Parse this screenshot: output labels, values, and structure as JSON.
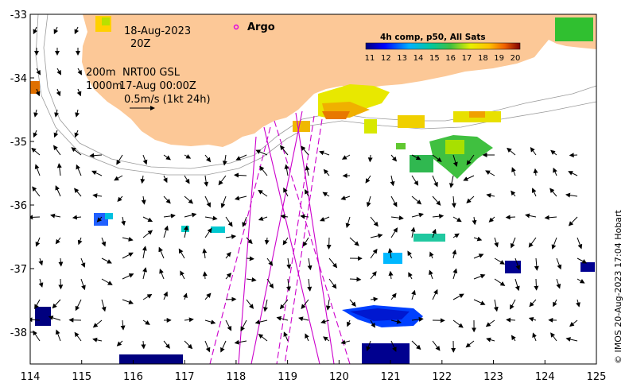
{
  "map": {
    "date_line": "18-Aug-2023",
    "time_line": "20Z",
    "depth_line_1_depth": "200m",
    "depth_line_1_text": "NRT00 GSL",
    "depth_line_2_depth": "1000m",
    "depth_line_2_text": "17-Aug 00:00Z",
    "scale_text": "0.5m/s (1kt 24h)",
    "argo_label": "Argo",
    "credit": "© IMOS 20-Aug-2023 17:04 Hobart"
  },
  "axes": {
    "x_ticks": [
      "114",
      "115",
      "116",
      "117",
      "118",
      "119",
      "120",
      "121",
      "122",
      "123",
      "124",
      "125"
    ],
    "y_ticks": [
      "-33",
      "-34",
      "-35",
      "-36",
      "-37",
      "-38"
    ],
    "lon_range": [
      114,
      125
    ],
    "lat_range": [
      -38.5,
      -33
    ]
  },
  "colorbar": {
    "title": "4h comp, p50, All Sats",
    "ticks": [
      "11",
      "12",
      "13",
      "14",
      "15",
      "16",
      "17",
      "18",
      "19",
      "20"
    ],
    "range": [
      11,
      20
    ]
  },
  "colors": {
    "land": "#fcc897",
    "argo": "#e000e0",
    "track": "#cc00cc",
    "arrow": "#000000"
  }
}
